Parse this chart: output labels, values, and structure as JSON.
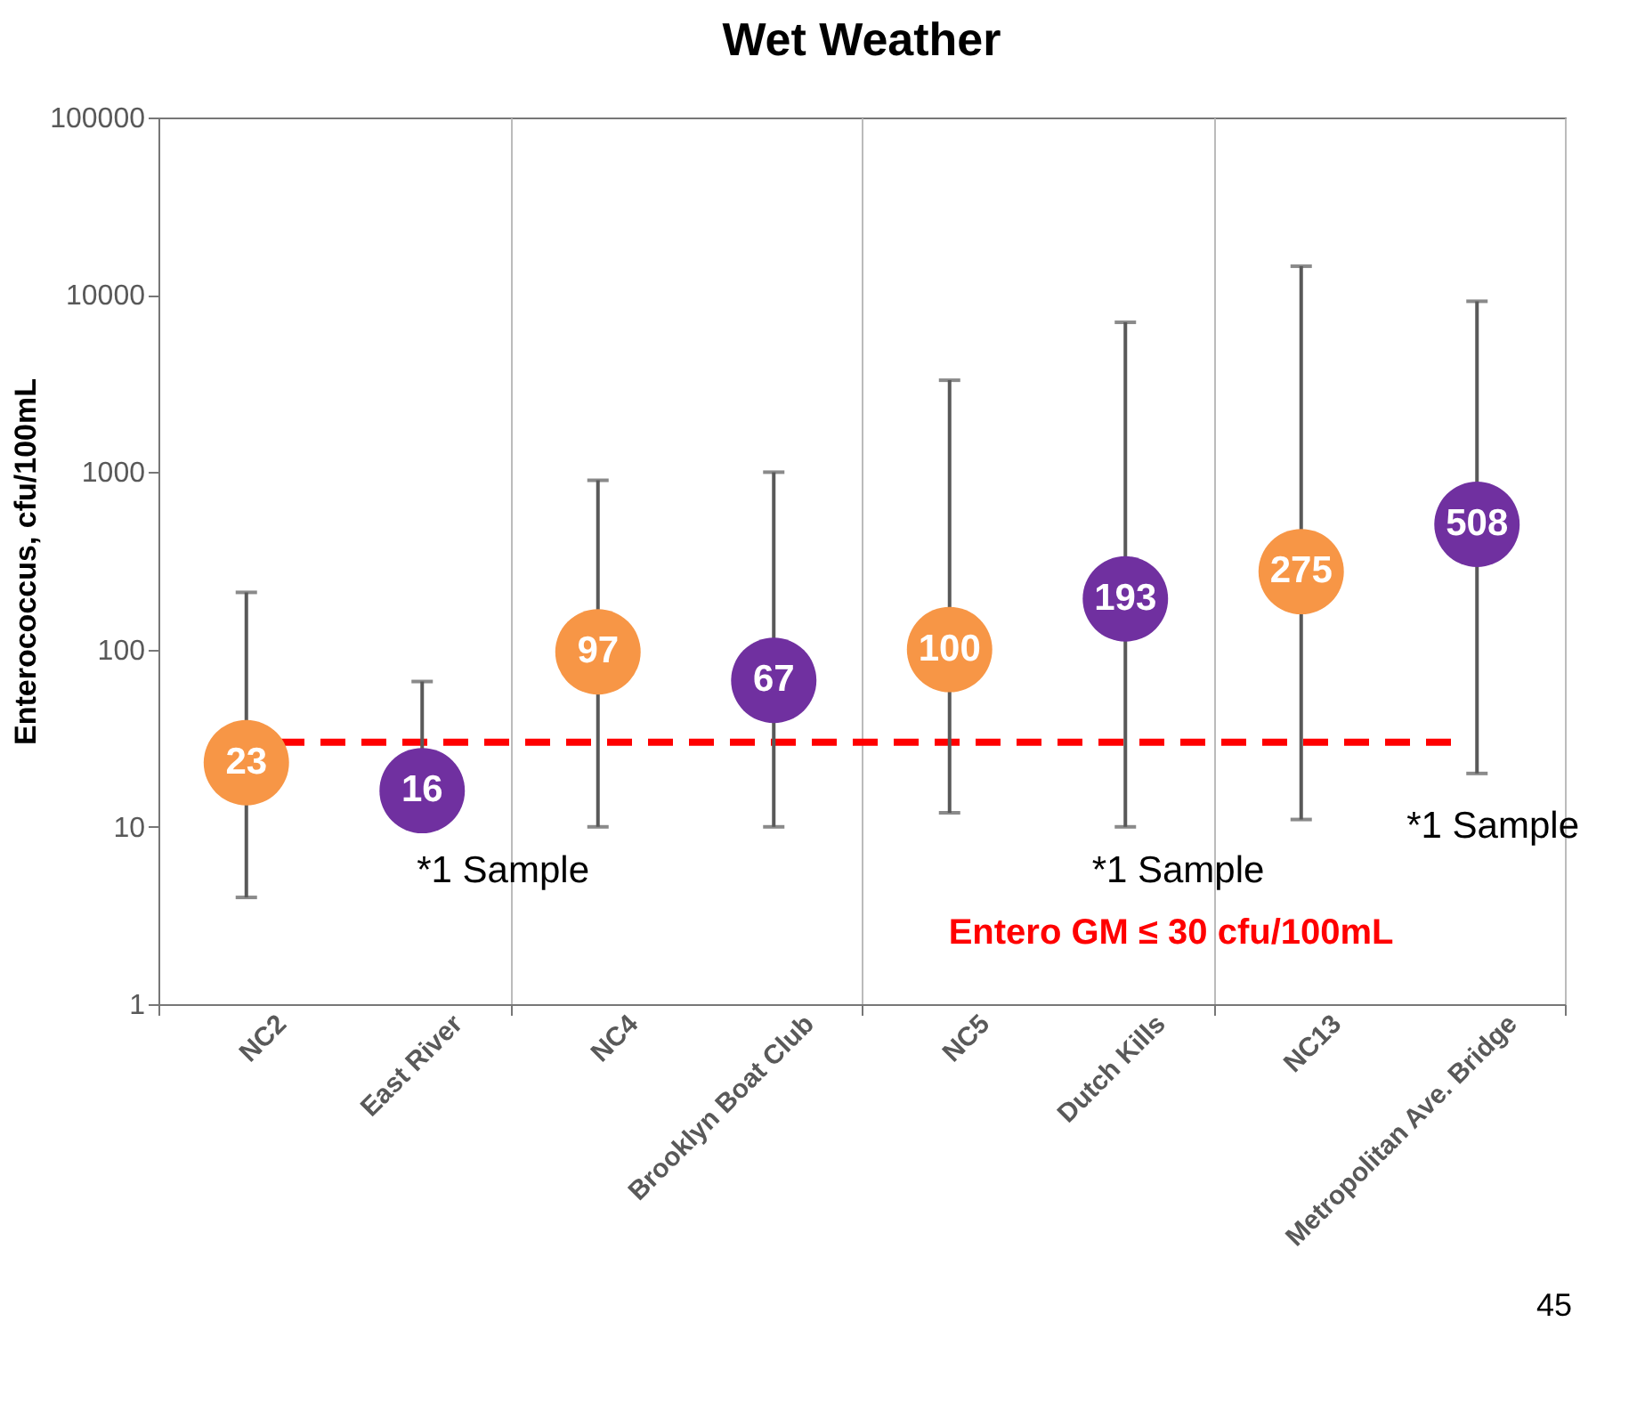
{
  "chart_data": {
    "type": "scatter",
    "title": "Wet Weather",
    "ylabel": "Enterococcus, cfu/100mL",
    "categories": [
      "NC2",
      "East River",
      "NC4",
      "Brooklyn Boat Club",
      "NC5",
      "Dutch Kills",
      "NC13",
      "Metropolitan Ave. Bridge"
    ],
    "values": [
      23,
      16,
      97,
      67,
      100,
      193,
      275,
      508
    ],
    "colors": [
      "#f79646",
      "#7030a0",
      "#f79646",
      "#7030a0",
      "#f79646",
      "#7030a0",
      "#f79646",
      "#7030a0"
    ],
    "errors": [
      [
        4,
        210
      ],
      [
        16,
        66
      ],
      [
        10,
        900
      ],
      [
        10,
        1000
      ],
      [
        12,
        3300
      ],
      [
        10,
        7000
      ],
      [
        11,
        14500
      ],
      [
        20,
        9200
      ]
    ],
    "data_labels": true,
    "log": true,
    "ylim": [
      1,
      100000
    ],
    "yticks": [
      1,
      10,
      100,
      1000,
      10000,
      100000
    ],
    "grid": "x",
    "marker": "circle",
    "ref_lines": [
      {
        "axis": "y",
        "value": 30,
        "label": "Entero GM ≤ 30 cfu/100mL",
        "color": "#ff0000",
        "line_style": "dashed"
      }
    ],
    "annotations": [
      "*1 Sample",
      "*1 Sample",
      "*1 Sample",
      "45"
    ]
  }
}
